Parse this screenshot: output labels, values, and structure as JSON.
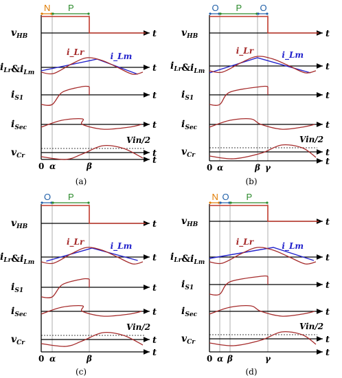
{
  "colors": {
    "axis": "#000000",
    "waveform": "#a52a2a",
    "vhb_red": "#c0392b",
    "magnetizing": "#2222cc",
    "mode_N": "#e07b00",
    "mode_O": "#1f5fa8",
    "mode_P": "#2a8a2a",
    "guide": "#999999"
  },
  "common": {
    "t": "t",
    "zero": "0",
    "vin_half": "Vin/2",
    "sig_vhb": "v_HB",
    "sig_ilr_ilm": "i_Lr & i_Lm",
    "sig_is1": "i_S1",
    "sig_isec": "i_Sec",
    "sig_vcr": "v_Cr",
    "label_ilr": "i_Lr",
    "label_ilm": "i_Lm"
  },
  "panels": [
    {
      "caption": "(a)",
      "modes": [
        "N",
        "P"
      ],
      "ticks": [
        "α",
        "β"
      ]
    },
    {
      "caption": "(b)",
      "modes": [
        "O",
        "P",
        "O"
      ],
      "ticks": [
        "α",
        "β",
        "γ"
      ]
    },
    {
      "caption": "(c)",
      "modes": [
        "O",
        "P"
      ],
      "ticks": [
        "α",
        "β"
      ]
    },
    {
      "caption": "(d)",
      "modes": [
        "N",
        "O",
        "P"
      ],
      "ticks": [
        "α",
        "β",
        "γ"
      ]
    }
  ]
}
